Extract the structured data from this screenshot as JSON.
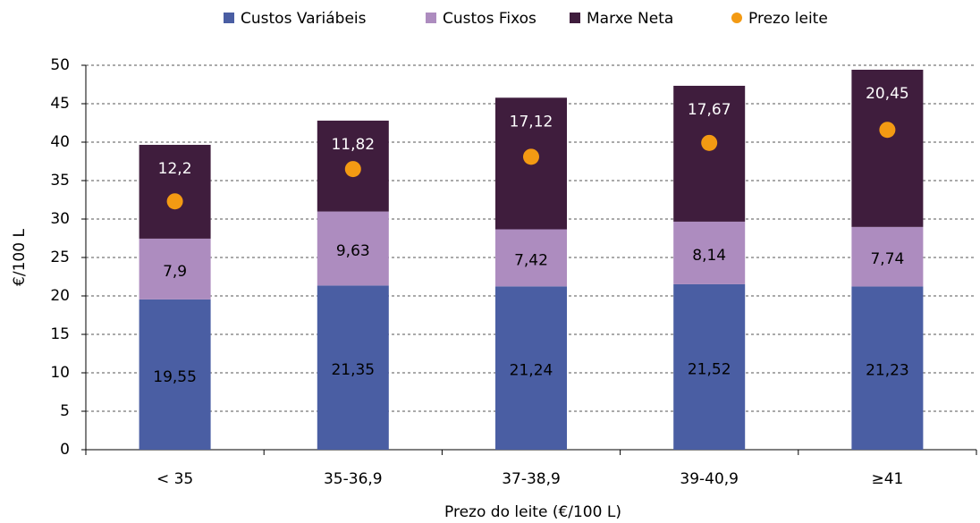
{
  "chart_data": {
    "type": "bar",
    "stacked": true,
    "categories": [
      "< 35",
      "35-36,9",
      "37-38,9",
      "39-40,9",
      "≥41"
    ],
    "series": [
      {
        "name": "Custos Variábeis",
        "color": "#4a5ea3",
        "values": [
          19.55,
          21.35,
          21.24,
          21.52,
          21.23
        ],
        "value_labels": [
          "19,55",
          "21,35",
          "21,24",
          "21,52",
          "21,23"
        ]
      },
      {
        "name": "Custos Fixos",
        "color": "#ad8cbf",
        "values": [
          7.9,
          9.63,
          7.42,
          8.14,
          7.74
        ],
        "value_labels": [
          "7,9",
          "9,63",
          "7,42",
          "8,14",
          "7,74"
        ]
      },
      {
        "name": "Marxe Neta",
        "color": "#3f1d3d",
        "values": [
          12.2,
          11.82,
          17.12,
          17.67,
          20.45
        ],
        "value_labels": [
          "12,2",
          "11,82",
          "17,12",
          "17,67",
          "20,45"
        ]
      },
      {
        "name": "Prezo leite",
        "color": "#f39a13",
        "type": "scatter",
        "values": [
          32.3,
          36.5,
          38.1,
          39.9,
          41.6
        ]
      }
    ],
    "ylabel": "€/100 L",
    "xlabel": "Prezo do leite (€/100 L)",
    "ylim": [
      0,
      50
    ],
    "yticks": [
      0,
      5,
      10,
      15,
      20,
      25,
      30,
      35,
      40,
      45,
      50
    ],
    "grid": true,
    "legend": "top"
  }
}
